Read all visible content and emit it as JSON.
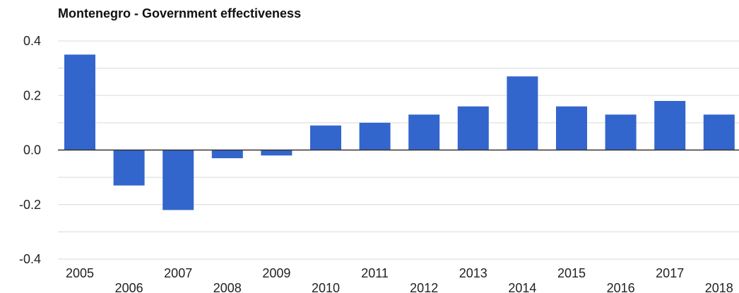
{
  "chart_data": {
    "type": "bar",
    "title": "Montenegro - Government effectiveness",
    "xlabel": "",
    "ylabel": "",
    "categories": [
      "2005",
      "2006",
      "2007",
      "2008",
      "2009",
      "2010",
      "2011",
      "2012",
      "2013",
      "2014",
      "2015",
      "2016",
      "2017",
      "2018"
    ],
    "values": [
      0.35,
      -0.13,
      -0.22,
      -0.03,
      -0.02,
      0.09,
      0.1,
      0.13,
      0.16,
      0.27,
      0.16,
      0.13,
      0.18,
      0.13
    ],
    "ylim": [
      -0.4,
      0.4
    ],
    "yticks": [
      "0.4",
      "0.2",
      "0.0",
      "-0.2",
      "-0.4"
    ],
    "ytick_values": [
      0.4,
      0.2,
      0.0,
      -0.2,
      -0.4
    ],
    "grid": true,
    "legend": "none",
    "bar_color": "#3366cc"
  }
}
